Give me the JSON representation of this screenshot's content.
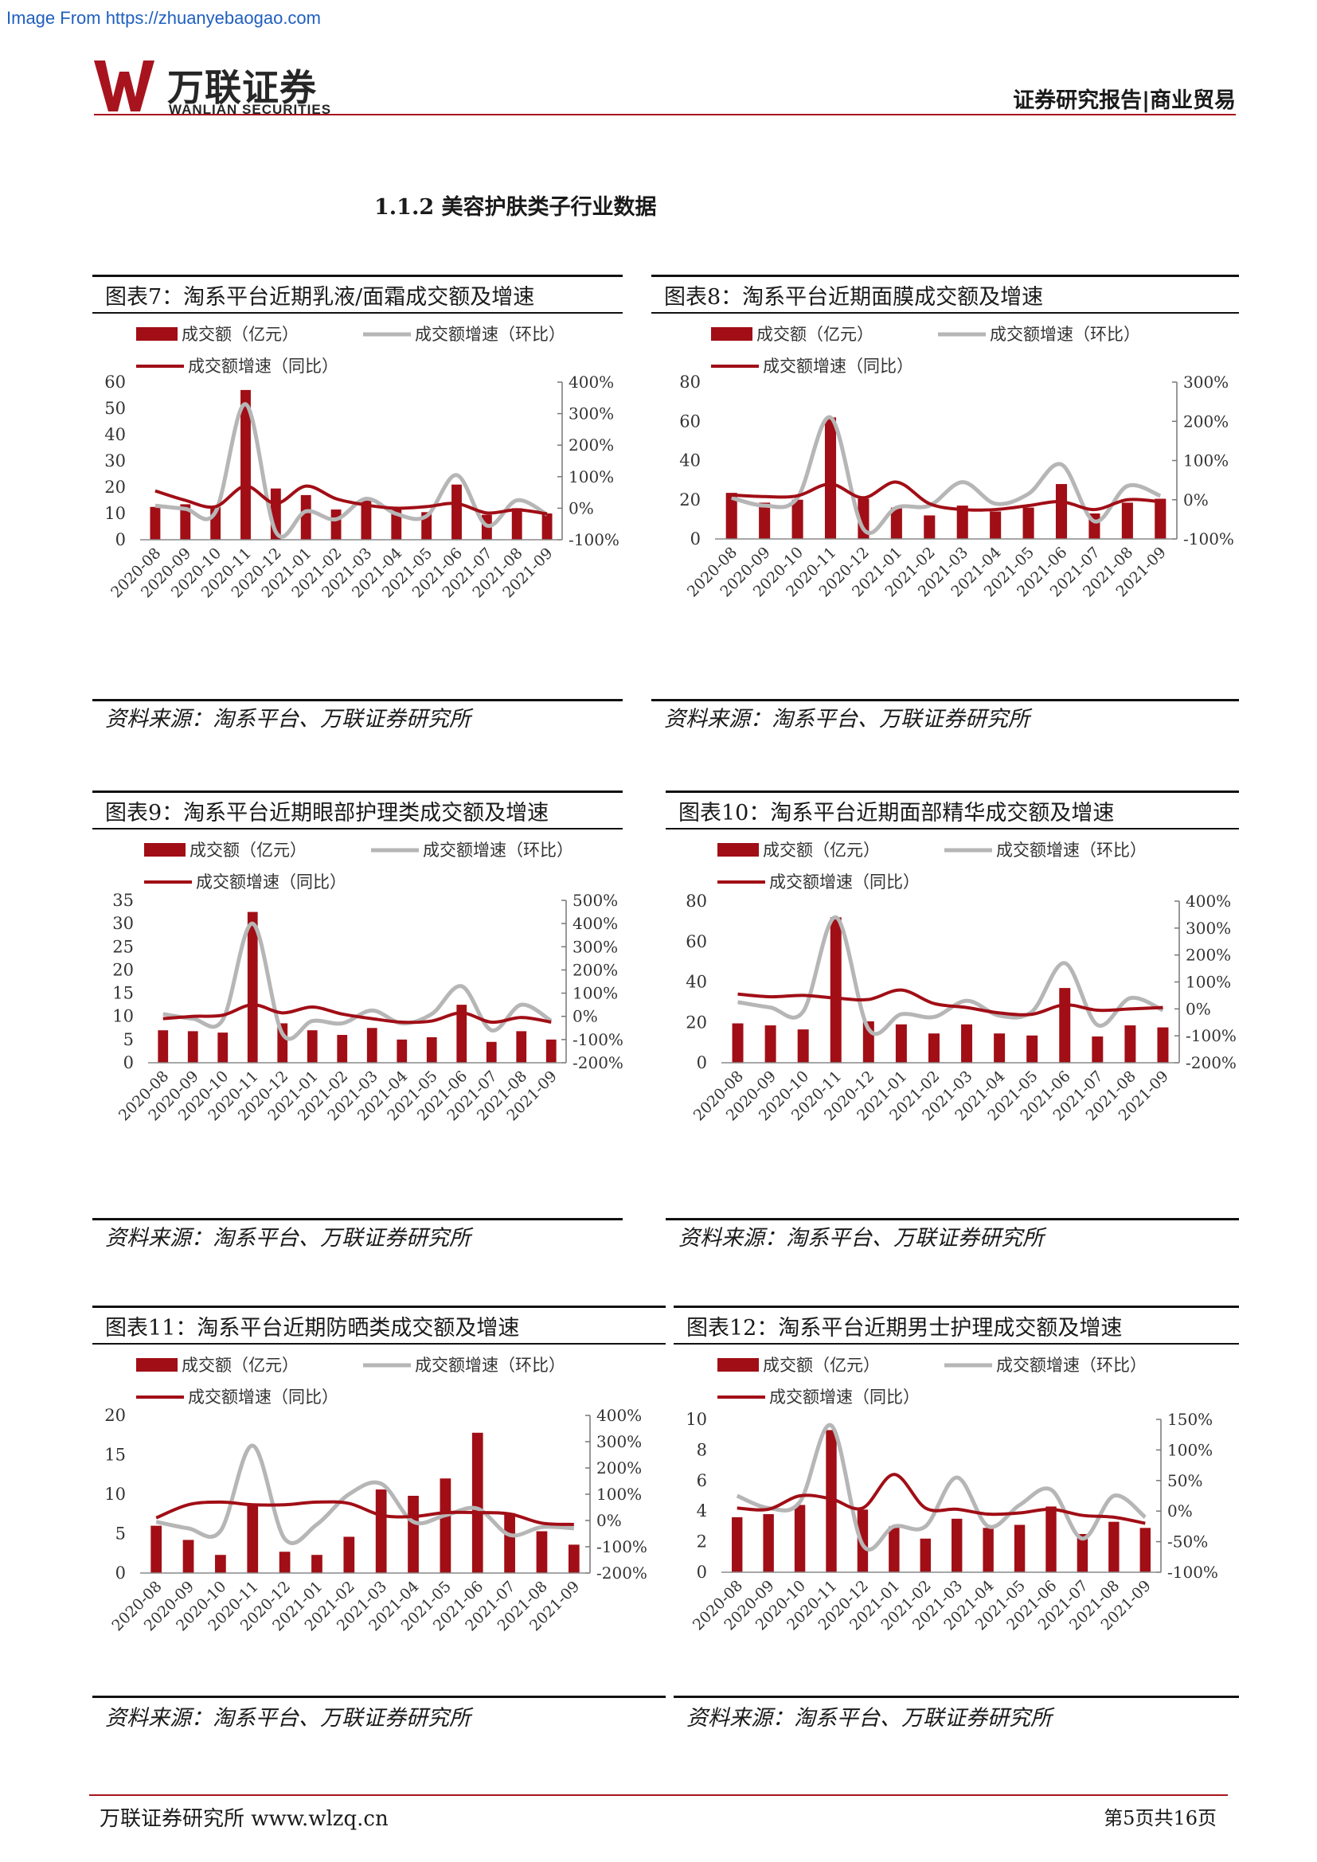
{
  "watermark": "Image From https://zhuanyebaogao.com",
  "header": {
    "brand_cn": "万联证券",
    "brand_en": "WANLIAN SECURITIES",
    "report_type": "证券研究报告|商业贸易",
    "brand_color": "#a8141e"
  },
  "section_heading": "1.1.2 美容护肤类子行业数据",
  "legend": {
    "bar": "成交额（亿元）",
    "mom": "成交额增速（环比）",
    "yoy": "成交额增速（同比）"
  },
  "colors": {
    "bar": "#a10e16",
    "yoy": "#a10e16",
    "mom": "#b6b6b6"
  },
  "months": [
    "2020-08",
    "2020-09",
    "2020-10",
    "2020-11",
    "2020-12",
    "2021-01",
    "2021-02",
    "2021-03",
    "2021-04",
    "2021-05",
    "2021-06",
    "2021-07",
    "2021-08",
    "2021-09"
  ],
  "source": "资料来源：淘系平台、万联证券研究所",
  "chart_data": [
    {
      "type": "bar",
      "title": "图表7：淘系平台近期乳液/面霜成交额及增速",
      "series": [
        {
          "name": "成交额（亿元）",
          "kind": "bar",
          "values": [
            12.5,
            13.5,
            12.5,
            57,
            19.5,
            17,
            11.5,
            15,
            12.5,
            10.5,
            21,
            9.5,
            12,
            10
          ]
        },
        {
          "name": "成交额增速（环比）",
          "kind": "line",
          "values": [
            8,
            -2,
            -12,
            330,
            -75,
            -10,
            -35,
            30,
            -18,
            -25,
            105,
            -55,
            25,
            -20
          ]
        },
        {
          "name": "成交额增速（同比）",
          "kind": "line",
          "values": [
            55,
            25,
            5,
            70,
            15,
            70,
            30,
            10,
            0,
            5,
            15,
            -15,
            -5,
            -18
          ]
        }
      ],
      "ylim": [
        0,
        60
      ],
      "y_ticks": [
        "0",
        "10",
        "20",
        "30",
        "40",
        "50",
        "60"
      ],
      "y2lim": [
        -100,
        400
      ],
      "y2_ticks": [
        "-100%",
        "0%",
        "100%",
        "200%",
        "300%",
        "400%"
      ]
    },
    {
      "type": "bar",
      "title": "图表8：淘系平台近期面膜成交额及增速",
      "series": [
        {
          "name": "成交额（亿元）",
          "kind": "bar",
          "values": [
            23.5,
            18.5,
            20,
            62,
            20.5,
            16,
            12,
            17,
            14,
            16,
            28,
            13,
            18.5,
            20.5
          ]
        },
        {
          "name": "成交额增速（环比）",
          "kind": "line",
          "values": [
            5,
            -15,
            5,
            210,
            -75,
            -20,
            -15,
            45,
            -10,
            15,
            90,
            -55,
            35,
            10
          ]
        },
        {
          "name": "成交额增速（同比）",
          "kind": "line",
          "values": [
            12,
            8,
            10,
            40,
            5,
            45,
            -10,
            -25,
            -25,
            -15,
            -5,
            -25,
            0,
            -5
          ]
        }
      ],
      "ylim": [
        0,
        80
      ],
      "y_ticks": [
        "0",
        "20",
        "40",
        "60",
        "80"
      ],
      "y2lim": [
        -100,
        300
      ],
      "y2_ticks": [
        "-100%",
        "0%",
        "100%",
        "200%",
        "300%"
      ]
    },
    {
      "type": "bar",
      "title": "图表9：淘系平台近期眼部护理类成交额及增速",
      "series": [
        {
          "name": "成交额（亿元）",
          "kind": "bar",
          "values": [
            7,
            6.8,
            6.5,
            32.5,
            8.5,
            7,
            6,
            7.5,
            5,
            5.5,
            12.5,
            4.5,
            6.8,
            5
          ]
        },
        {
          "name": "成交额增速（环比）",
          "kind": "line",
          "values": [
            10,
            -10,
            -15,
            400,
            -75,
            -20,
            -30,
            25,
            -30,
            10,
            130,
            -60,
            50,
            -20
          ]
        },
        {
          "name": "成交额增速（同比）",
          "kind": "line",
          "values": [
            -10,
            0,
            5,
            50,
            15,
            40,
            10,
            -10,
            -25,
            -20,
            15,
            -25,
            -5,
            -25
          ]
        }
      ],
      "ylim": [
        0,
        35
      ],
      "y_ticks": [
        "0",
        "5",
        "10",
        "15",
        "20",
        "25",
        "30",
        "35"
      ],
      "y2lim": [
        -200,
        500
      ],
      "y2_ticks": [
        "-200%",
        "-100%",
        "0%",
        "100%",
        "200%",
        "300%",
        "400%",
        "500%"
      ]
    },
    {
      "type": "bar",
      "title": "图表10：淘系平台近期面部精华成交额及增速",
      "series": [
        {
          "name": "成交额（亿元）",
          "kind": "bar",
          "values": [
            19.5,
            18.5,
            16.5,
            72,
            20.5,
            19,
            14.5,
            19,
            14.5,
            13.5,
            37,
            13,
            18.5,
            17.5
          ]
        },
        {
          "name": "成交额增速（环比）",
          "kind": "line",
          "values": [
            25,
            5,
            -10,
            340,
            -75,
            -20,
            -30,
            30,
            -25,
            -10,
            170,
            -60,
            40,
            -5
          ]
        },
        {
          "name": "成交额增速（同比）",
          "kind": "line",
          "values": [
            55,
            45,
            50,
            40,
            35,
            70,
            20,
            5,
            -15,
            -20,
            15,
            -5,
            0,
            5
          ]
        }
      ],
      "ylim": [
        0,
        80
      ],
      "y_ticks": [
        "0",
        "20",
        "40",
        "60",
        "80"
      ],
      "y2lim": [
        -200,
        400
      ],
      "y2_ticks": [
        "-200%",
        "-100%",
        "0%",
        "100%",
        "200%",
        "300%",
        "400%"
      ]
    },
    {
      "type": "bar",
      "title": "图表11：淘系平台近期防晒类成交额及增速",
      "series": [
        {
          "name": "成交额（亿元）",
          "kind": "bar",
          "values": [
            6,
            4.2,
            2.3,
            8.8,
            2.7,
            2.3,
            4.6,
            10.6,
            9.8,
            12,
            17.8,
            7.6,
            5.3,
            3.6
          ]
        },
        {
          "name": "成交额增速（环比）",
          "kind": "line",
          "values": [
            -5,
            -30,
            -40,
            285,
            -70,
            -15,
            100,
            140,
            -5,
            20,
            45,
            -55,
            -25,
            -30
          ]
        },
        {
          "name": "成交额增速（同比）",
          "kind": "line",
          "values": [
            10,
            60,
            70,
            60,
            60,
            70,
            65,
            20,
            15,
            30,
            30,
            25,
            -10,
            -15
          ]
        }
      ],
      "ylim": [
        0,
        20
      ],
      "y_ticks": [
        "0",
        "5",
        "10",
        "15",
        "20"
      ],
      "y2lim": [
        -200,
        400
      ],
      "y2_ticks": [
        "-200%",
        "-100%",
        "0%",
        "100%",
        "200%",
        "300%",
        "400%"
      ]
    },
    {
      "type": "bar",
      "title": "图表12：淘系平台近期男士护理成交额及增速",
      "series": [
        {
          "name": "成交额（亿元）",
          "kind": "bar",
          "values": [
            3.6,
            3.8,
            4.4,
            9.3,
            4.1,
            3,
            2.2,
            3.5,
            2.9,
            3.1,
            4.3,
            2.5,
            3.3,
            2.9
          ]
        },
        {
          "name": "成交额增速（环比）",
          "kind": "line",
          "values": [
            25,
            5,
            15,
            140,
            -55,
            -25,
            -25,
            55,
            -25,
            10,
            35,
            -45,
            25,
            -10
          ]
        },
        {
          "name": "成交额增速（同比）",
          "kind": "line",
          "values": [
            5,
            3,
            25,
            20,
            5,
            60,
            5,
            3,
            -5,
            -3,
            3,
            -7,
            -10,
            -20
          ]
        }
      ],
      "ylim": [
        0,
        10
      ],
      "y_ticks": [
        "0",
        "2",
        "4",
        "6",
        "8",
        "10"
      ],
      "y2lim": [
        -100,
        150
      ],
      "y2_ticks": [
        "-100%",
        "-50%",
        "0%",
        "50%",
        "100%",
        "150%"
      ]
    }
  ],
  "footer": {
    "left": "万联证券研究所 www.wlzq.cn",
    "right": "第5页共16页"
  }
}
